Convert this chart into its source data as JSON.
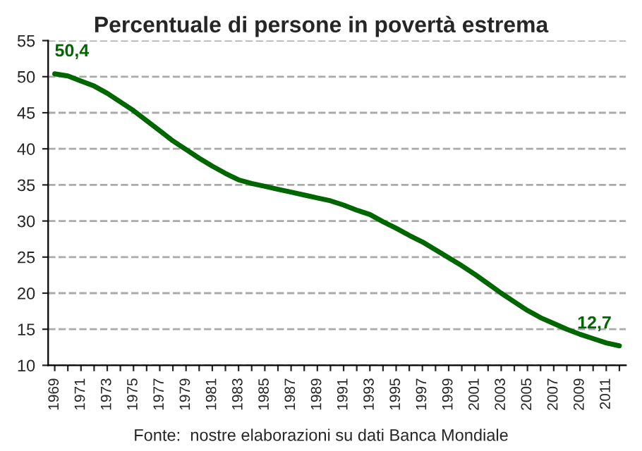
{
  "chart_data": {
    "type": "line",
    "title": "Percentuale di persone in povertà estrema",
    "categories": [
      "1969",
      null,
      "1971",
      null,
      "1973",
      null,
      "1975",
      null,
      "1977",
      null,
      "1979",
      null,
      "1981",
      null,
      "1983",
      null,
      "1985",
      null,
      "1987",
      null,
      "1989",
      null,
      "1991",
      null,
      "1993",
      null,
      "1995",
      null,
      "1997",
      null,
      "1999",
      null,
      "2001",
      null,
      "2003",
      null,
      "2005",
      null,
      "2007",
      null,
      "2009",
      null,
      "2011",
      null
    ],
    "series": [
      {
        "color": "#006600",
        "values": [
          50.4,
          50.1,
          49.4,
          48.7,
          47.7,
          46.5,
          45.3,
          43.9,
          42.5,
          41.1,
          39.9,
          38.7,
          37.6,
          36.6,
          35.7,
          35.2,
          34.8,
          34.4,
          34.0,
          33.6,
          33.2,
          32.8,
          32.2,
          31.5,
          30.9,
          29.9,
          29.0,
          28.0,
          27.1,
          26.0,
          24.9,
          23.8,
          22.6,
          21.3,
          20.0,
          18.8,
          17.6,
          16.6,
          15.8,
          15.0,
          14.3,
          13.7,
          13.1,
          12.7
        ],
        "value_labels": [
          "50,4",
          null,
          null,
          null,
          null,
          null,
          null,
          null,
          null,
          null,
          null,
          null,
          null,
          null,
          null,
          null,
          null,
          null,
          null,
          null,
          null,
          null,
          null,
          null,
          null,
          null,
          null,
          null,
          null,
          null,
          null,
          null,
          null,
          null,
          null,
          null,
          null,
          null,
          null,
          null,
          null,
          null,
          null,
          "12,7"
        ]
      }
    ],
    "ylim": [
      10,
      55
    ],
    "yticks": [
      10,
      15,
      20,
      25,
      30,
      35,
      40,
      45,
      50,
      55
    ],
    "grid": "y",
    "line_style": "solid",
    "marker": "none",
    "annotations": [
      "Fonte:  nostre elaborazioni su dati Banca Mondiale"
    ]
  }
}
